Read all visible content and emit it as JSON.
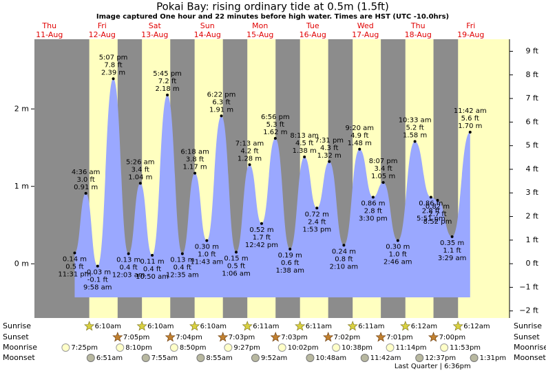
{
  "chart_data": {
    "type": "area",
    "title": "Pokai Bay: rising  ordinary tide at 0.5m (1.5ft)",
    "subtitle": "Image captured One hour and 22 minutes before high water. Times are HST (UTC -10.0hrs)",
    "color": "#9aa8ff",
    "ylim": [
      -0.7,
      2.9
    ],
    "yticks": [
      {
        "value": 0,
        "label": "0 m"
      },
      {
        "value": 1,
        "label": "1 m"
      },
      {
        "value": 2,
        "label": "2 m"
      }
    ],
    "y2lim": [
      -2.3,
      9.51
    ],
    "y2ticks": [
      {
        "value": -2,
        "label": "−2 ft"
      },
      {
        "value": -1,
        "label": "−1 ft"
      },
      {
        "value": 0,
        "label": "0 ft"
      },
      {
        "value": 1,
        "label": "1 ft"
      },
      {
        "value": 2,
        "label": "2 ft"
      },
      {
        "value": 3,
        "label": "3 ft"
      },
      {
        "value": 4,
        "label": "4 ft"
      },
      {
        "value": 5,
        "label": "5 ft"
      },
      {
        "value": 6,
        "label": "6 ft"
      },
      {
        "value": 7,
        "label": "7 ft"
      },
      {
        "value": 8,
        "label": "8 ft"
      },
      {
        "value": 9,
        "label": "9 ft"
      }
    ],
    "row_labels": {
      "sunrise": "Sunrise",
      "sunset": "Sunset",
      "moonrise": "Moonrise",
      "moonset": "Moonset"
    },
    "days": [
      {
        "weekday": "Thu",
        "date": "11-Aug",
        "moonrise": "7:25pm",
        "tides": [
          {
            "time": "11:31 pm",
            "value": 0.14,
            "value_label": "0.14 m",
            "ft_label": "0.5 ft"
          }
        ]
      },
      {
        "weekday": "Fri",
        "date": "12-Aug",
        "sunrise": "6:10am",
        "sunset": "7:05pm",
        "moonrise": "8:10pm",
        "moonset": "6:51am",
        "tides": [
          {
            "time": "4:36 am",
            "value": 0.91,
            "value_label": "0.91 m",
            "ft_label": "3.0 ft"
          },
          {
            "time": "9:58 am",
            "value": -0.03,
            "value_label": "-0.03 m",
            "ft_label": "-0.1 ft"
          },
          {
            "time": "5:07 pm",
            "value": 2.39,
            "value_label": "2.39 m",
            "ft_label": "7.8 ft"
          }
        ]
      },
      {
        "weekday": "Sat",
        "date": "13-Aug",
        "sunrise": "6:10am",
        "sunset": "7:04pm",
        "moonrise": "8:50pm",
        "moonset": "7:55am",
        "tides": [
          {
            "time": "12:03 am",
            "value": 0.13,
            "value_label": "0.13 m",
            "ft_label": "0.4 ft"
          },
          {
            "time": "5:26 am",
            "value": 1.04,
            "value_label": "1.04 m",
            "ft_label": "3.4 ft"
          },
          {
            "time": "10:50 am",
            "value": 0.11,
            "value_label": "0.11 m",
            "ft_label": "0.4 ft"
          },
          {
            "time": "5:45 pm",
            "value": 2.18,
            "value_label": "2.18 m",
            "ft_label": "7.2 ft"
          }
        ]
      },
      {
        "weekday": "Sun",
        "date": "14-Aug",
        "sunrise": "6:10am",
        "sunset": "7:03pm",
        "moonrise": "9:27pm",
        "moonset": "8:55am",
        "tides": [
          {
            "time": "12:35 am",
            "value": 0.13,
            "value_label": "0.13 m",
            "ft_label": "0.4 ft"
          },
          {
            "time": "6:18 am",
            "value": 1.17,
            "value_label": "1.17 m",
            "ft_label": "3.8 ft"
          },
          {
            "time": "11:43 am",
            "value": 0.3,
            "value_label": "0.30 m",
            "ft_label": "1.0 ft"
          },
          {
            "time": "6:22 pm",
            "value": 1.91,
            "value_label": "1.91 m",
            "ft_label": "6.3 ft"
          }
        ]
      },
      {
        "weekday": "Mon",
        "date": "15-Aug",
        "sunrise": "6:11am",
        "sunset": "7:03pm",
        "moonrise": "10:02pm",
        "moonset": "9:52am",
        "tides": [
          {
            "time": "1:06 am",
            "value": 0.15,
            "value_label": "0.15 m",
            "ft_label": "0.5 ft"
          },
          {
            "time": "7:13 am",
            "value": 1.28,
            "value_label": "1.28 m",
            "ft_label": "4.2 ft"
          },
          {
            "time": "12:42 pm",
            "value": 0.52,
            "value_label": "0.52 m",
            "ft_label": "1.7 ft"
          },
          {
            "time": "6:56 pm",
            "value": 1.62,
            "value_label": "1.62 m",
            "ft_label": "5.3 ft"
          }
        ]
      },
      {
        "weekday": "Tue",
        "date": "16-Aug",
        "sunrise": "6:11am",
        "sunset": "7:02pm",
        "moonrise": "10:38pm",
        "moonset": "10:48am",
        "tides": [
          {
            "time": "1:38 am",
            "value": 0.19,
            "value_label": "0.19 m",
            "ft_label": "0.6 ft"
          },
          {
            "time": "8:13 am",
            "value": 1.38,
            "value_label": "1.38 m",
            "ft_label": "4.5 ft"
          },
          {
            "time": "1:53 pm",
            "value": 0.72,
            "value_label": "0.72 m",
            "ft_label": "2.4 ft"
          },
          {
            "time": "7:31 pm",
            "value": 1.32,
            "value_label": "1.32 m",
            "ft_label": "4.3 ft"
          }
        ]
      },
      {
        "weekday": "Wed",
        "date": "17-Aug",
        "sunrise": "6:11am",
        "sunset": "7:01pm",
        "moonrise": "11:14pm",
        "moonset": "11:42am",
        "tides": [
          {
            "time": "2:10 am",
            "value": 0.24,
            "value_label": "0.24 m",
            "ft_label": "0.8 ft"
          },
          {
            "time": "9:20 am",
            "value": 1.48,
            "value_label": "1.48 m",
            "ft_label": "4.9 ft"
          },
          {
            "time": "3:30 pm",
            "value": 0.86,
            "value_label": "0.86 m",
            "ft_label": "2.8 ft"
          },
          {
            "time": "8:07 pm",
            "value": 1.05,
            "value_label": "1.05 m",
            "ft_label": "3.4 ft"
          }
        ]
      },
      {
        "weekday": "Thu",
        "date": "18-Aug",
        "sunrise": "6:12am",
        "sunset": "7:00pm",
        "moonrise": "11:53pm",
        "moonset": "12:37pm",
        "moon_phase": "Last Quarter | 6:36pm",
        "moon_phase_time": "6:36pm",
        "tides": [
          {
            "time": "2:46 am",
            "value": 0.3,
            "value_label": "0.30 m",
            "ft_label": "1.0 ft"
          },
          {
            "time": "10:33 am",
            "value": 1.58,
            "value_label": "1.58 m",
            "ft_label": "5.2 ft"
          },
          {
            "time": "5:51 pm",
            "value": 0.86,
            "value_label": "0.86 m",
            "ft_label": "2.8 ft"
          },
          {
            "time": "8:52 pm",
            "value": 0.82,
            "value_label": "0.82 m",
            "ft_label": "2.7 ft"
          }
        ]
      },
      {
        "weekday": "Fri",
        "date": "19-Aug",
        "sunrise": "6:12am",
        "moonset": "1:31pm",
        "tides": [
          {
            "time": "3:29 am",
            "value": 0.35,
            "value_label": "0.35 m",
            "ft_label": "1.1 ft"
          },
          {
            "time": "11:42 am",
            "value": 1.7,
            "value_label": "1.70 m",
            "ft_label": "5.6 ft"
          }
        ]
      }
    ]
  }
}
